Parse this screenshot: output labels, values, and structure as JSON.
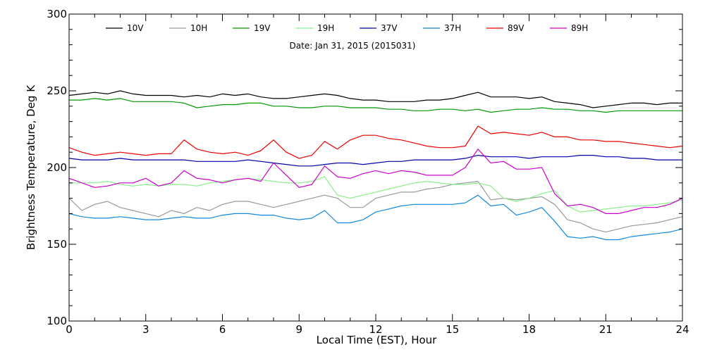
{
  "chart_data": {
    "type": "line",
    "subtitle": "Date: Jan 31, 2015 (2015031)",
    "xlabel": "Local Time (EST), Hour",
    "ylabel": "Brightness Temperature, Deg K",
    "xlim": [
      0,
      24
    ],
    "ylim": [
      100,
      300
    ],
    "xticks": [
      0,
      3,
      6,
      9,
      12,
      15,
      18,
      21,
      24
    ],
    "yticks": [
      100,
      150,
      200,
      250,
      300
    ],
    "grid": false,
    "legend_position": "top",
    "series": [
      {
        "name": "10V",
        "color": "#000000",
        "x": [
          0,
          0.5,
          1,
          1.5,
          2,
          2.5,
          3,
          3.5,
          4,
          4.5,
          5,
          5.5,
          6,
          6.5,
          7,
          7.5,
          8,
          8.5,
          9,
          9.5,
          10,
          10.5,
          11,
          11.5,
          12,
          12.5,
          13,
          13.5,
          14,
          14.5,
          15,
          15.5,
          16,
          16.5,
          17,
          17.5,
          18,
          18.5,
          19,
          19.5,
          20,
          20.5,
          21,
          21.5,
          22,
          22.5,
          23,
          23.5,
          24
        ],
        "y": [
          247,
          248,
          249,
          248,
          250,
          248,
          247,
          247,
          247,
          246,
          247,
          246,
          248,
          247,
          248,
          246,
          245,
          245,
          246,
          247,
          248,
          247,
          245,
          244,
          244,
          243,
          243,
          243,
          244,
          244,
          245,
          247,
          249,
          246,
          246,
          246,
          245,
          246,
          243,
          242,
          241,
          239,
          240,
          241,
          242,
          242,
          241,
          242,
          242
        ]
      },
      {
        "name": "10H",
        "color": "#999999",
        "x": [
          0,
          0.5,
          1,
          1.5,
          2,
          2.5,
          3,
          3.5,
          4,
          4.5,
          5,
          5.5,
          6,
          6.5,
          7,
          7.5,
          8,
          8.5,
          9,
          9.5,
          10,
          10.5,
          11,
          11.5,
          12,
          12.5,
          13,
          13.5,
          14,
          14.5,
          15,
          15.5,
          16,
          16.5,
          17,
          17.5,
          18,
          18.5,
          19,
          19.5,
          20,
          20.5,
          21,
          21.5,
          22,
          22.5,
          23,
          23.5,
          24
        ],
        "y": [
          180,
          172,
          176,
          178,
          174,
          172,
          170,
          168,
          172,
          170,
          174,
          172,
          176,
          178,
          178,
          176,
          174,
          176,
          178,
          180,
          182,
          180,
          174,
          174,
          180,
          182,
          184,
          184,
          186,
          187,
          189,
          190,
          191,
          179,
          180,
          179,
          180,
          181,
          176,
          166,
          164,
          160,
          158,
          160,
          162,
          163,
          164,
          166,
          168
        ]
      },
      {
        "name": "19V",
        "color": "#009900",
        "x": [
          0,
          0.5,
          1,
          1.5,
          2,
          2.5,
          3,
          3.5,
          4,
          4.5,
          5,
          5.5,
          6,
          6.5,
          7,
          7.5,
          8,
          8.5,
          9,
          9.5,
          10,
          10.5,
          11,
          11.5,
          12,
          12.5,
          13,
          13.5,
          14,
          14.5,
          15,
          15.5,
          16,
          16.5,
          17,
          17.5,
          18,
          18.5,
          19,
          19.5,
          20,
          20.5,
          21,
          21.5,
          22,
          22.5,
          23,
          23.5,
          24
        ],
        "y": [
          244,
          244,
          245,
          244,
          245,
          243,
          243,
          243,
          243,
          242,
          239,
          240,
          241,
          241,
          242,
          242,
          240,
          240,
          239,
          239,
          240,
          240,
          239,
          239,
          239,
          238,
          238,
          237,
          237,
          238,
          238,
          237,
          238,
          236,
          237,
          238,
          238,
          239,
          238,
          238,
          237,
          237,
          236,
          237,
          237,
          237,
          237,
          237,
          237
        ]
      },
      {
        "name": "19H",
        "color": "#88ee88",
        "x": [
          0,
          0.5,
          1,
          1.5,
          2,
          2.5,
          3,
          3.5,
          4,
          4.5,
          5,
          5.5,
          6,
          6.5,
          7,
          7.5,
          8,
          8.5,
          9,
          9.5,
          10,
          10.5,
          11,
          11.5,
          12,
          12.5,
          13,
          13.5,
          14,
          14.5,
          15,
          15.5,
          16,
          16.5,
          17,
          17.5,
          18,
          18.5,
          19,
          19.5,
          20,
          20.5,
          21,
          21.5,
          22,
          22.5,
          23,
          23.5,
          24
        ],
        "y": [
          190,
          190,
          190,
          191,
          189,
          188,
          189,
          188,
          189,
          189,
          188,
          190,
          191,
          192,
          193,
          192,
          191,
          190,
          190,
          191,
          194,
          182,
          180,
          182,
          184,
          186,
          188,
          190,
          191,
          190,
          189,
          189,
          190,
          188,
          180,
          178,
          180,
          183,
          185,
          175,
          171,
          172,
          173,
          174,
          175,
          175,
          176,
          177,
          179
        ]
      },
      {
        "name": "37V",
        "color": "#0000aa",
        "x": [
          0,
          0.5,
          1,
          1.5,
          2,
          2.5,
          3,
          3.5,
          4,
          4.5,
          5,
          5.5,
          6,
          6.5,
          7,
          7.5,
          8,
          8.5,
          9,
          9.5,
          10,
          10.5,
          11,
          11.5,
          12,
          12.5,
          13,
          13.5,
          14,
          14.5,
          15,
          15.5,
          16,
          16.5,
          17,
          17.5,
          18,
          18.5,
          19,
          19.5,
          20,
          20.5,
          21,
          21.5,
          22,
          22.5,
          23,
          23.5,
          24
        ],
        "y": [
          206,
          205,
          205,
          205,
          206,
          205,
          205,
          205,
          205,
          205,
          204,
          204,
          204,
          204,
          205,
          204,
          203,
          202,
          201,
          201,
          202,
          203,
          203,
          202,
          203,
          204,
          204,
          205,
          205,
          205,
          205,
          206,
          208,
          207,
          207,
          207,
          206,
          207,
          207,
          207,
          208,
          208,
          207,
          207,
          206,
          206,
          205,
          205,
          205
        ]
      },
      {
        "name": "37H",
        "color": "#1188dd",
        "x": [
          0,
          0.5,
          1,
          1.5,
          2,
          2.5,
          3,
          3.5,
          4,
          4.5,
          5,
          5.5,
          6,
          6.5,
          7,
          7.5,
          8,
          8.5,
          9,
          9.5,
          10,
          10.5,
          11,
          11.5,
          12,
          12.5,
          13,
          13.5,
          14,
          14.5,
          15,
          15.5,
          16,
          16.5,
          17,
          17.5,
          18,
          18.5,
          19,
          19.5,
          20,
          20.5,
          21,
          21.5,
          22,
          22.5,
          23,
          23.5,
          24
        ],
        "y": [
          170,
          168,
          167,
          167,
          168,
          167,
          166,
          166,
          167,
          168,
          167,
          167,
          169,
          170,
          170,
          169,
          169,
          167,
          166,
          167,
          172,
          164,
          164,
          166,
          171,
          173,
          175,
          176,
          176,
          176,
          176,
          177,
          182,
          175,
          176,
          169,
          171,
          174,
          165,
          155,
          154,
          155,
          153,
          153,
          155,
          156,
          157,
          158,
          160
        ]
      },
      {
        "name": "89V",
        "color": "#ee0000",
        "x": [
          0,
          0.5,
          1,
          1.5,
          2,
          2.5,
          3,
          3.5,
          4,
          4.5,
          5,
          5.5,
          6,
          6.5,
          7,
          7.5,
          8,
          8.5,
          9,
          9.5,
          10,
          10.5,
          11,
          11.5,
          12,
          12.5,
          13,
          13.5,
          14,
          14.5,
          15,
          15.5,
          16,
          16.5,
          17,
          17.5,
          18,
          18.5,
          19,
          19.5,
          20,
          20.5,
          21,
          21.5,
          22,
          22.5,
          23,
          23.5,
          24
        ],
        "y": [
          213,
          210,
          208,
          209,
          210,
          209,
          208,
          209,
          209,
          218,
          212,
          210,
          209,
          210,
          208,
          211,
          218,
          210,
          206,
          208,
          217,
          212,
          218,
          221,
          221,
          219,
          218,
          216,
          214,
          213,
          213,
          214,
          227,
          222,
          223,
          222,
          221,
          223,
          220,
          220,
          218,
          218,
          217,
          217,
          216,
          215,
          214,
          213,
          214
        ]
      },
      {
        "name": "89H",
        "color": "#cc00cc",
        "x": [
          0,
          0.5,
          1,
          1.5,
          2,
          2.5,
          3,
          3.5,
          4,
          4.5,
          5,
          5.5,
          6,
          6.5,
          7,
          7.5,
          8,
          8.5,
          9,
          9.5,
          10,
          10.5,
          11,
          11.5,
          12,
          12.5,
          13,
          13.5,
          14,
          14.5,
          15,
          15.5,
          16,
          16.5,
          17,
          17.5,
          18,
          18.5,
          19,
          19.5,
          20,
          20.5,
          21,
          21.5,
          22,
          22.5,
          23,
          23.5,
          24
        ],
        "y": [
          193,
          190,
          187,
          188,
          190,
          190,
          193,
          188,
          190,
          198,
          193,
          192,
          190,
          192,
          193,
          191,
          203,
          195,
          187,
          189,
          201,
          194,
          193,
          196,
          198,
          196,
          198,
          197,
          195,
          195,
          195,
          200,
          212,
          203,
          204,
          199,
          199,
          200,
          183,
          175,
          176,
          174,
          170,
          170,
          172,
          174,
          174,
          176,
          180
        ]
      }
    ]
  }
}
